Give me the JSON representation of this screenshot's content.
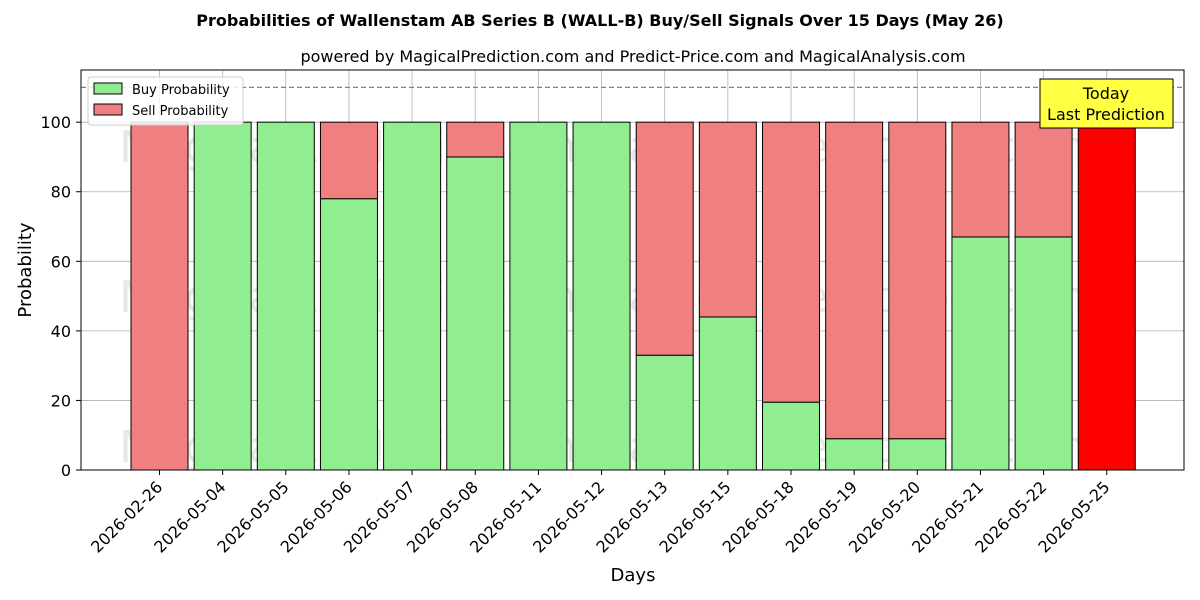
{
  "chart_data": {
    "type": "bar",
    "stacked": true,
    "title": "Probabilities of Wallenstam AB Series B (WALL-B) Buy/Sell Signals Over 15 Days (May 26)",
    "subtitle": "powered by MagicalPrediction.com and Predict-Price.com and MagicalAnalysis.com",
    "xlabel": "Days",
    "ylabel": "Probability",
    "ylim": [
      0,
      115
    ],
    "yticks": [
      0,
      20,
      40,
      60,
      80,
      100
    ],
    "grid": true,
    "legend_position": "top-left",
    "reference_line": 110,
    "categories": [
      "2026-02-26",
      "2026-05-04",
      "2026-05-05",
      "2026-05-06",
      "2026-05-07",
      "2026-05-08",
      "2026-05-11",
      "2026-05-12",
      "2026-05-13",
      "2026-05-15",
      "2026-05-18",
      "2026-05-19",
      "2026-05-20",
      "2026-05-21",
      "2026-05-22",
      "2026-05-25"
    ],
    "series": [
      {
        "name": "Buy Probability",
        "color": "#90ee90",
        "values": [
          0,
          100,
          100,
          78,
          100,
          90,
          100,
          100,
          33,
          44,
          19.5,
          9,
          9,
          67,
          67,
          0
        ]
      },
      {
        "name": "Sell Probability",
        "color": "#f08080",
        "values": [
          100,
          0,
          0,
          22,
          0,
          10,
          0,
          0,
          67,
          56,
          80.5,
          91,
          91,
          33,
          33,
          100
        ]
      }
    ],
    "highlight": {
      "index": 15,
      "color": "#ff0000"
    },
    "annotation": {
      "lines": [
        "Today",
        "Last Prediction"
      ],
      "background": "#ffff44"
    },
    "watermarks": [
      "MagicalAnalysis.com",
      "MagicalPrediction.com"
    ]
  }
}
